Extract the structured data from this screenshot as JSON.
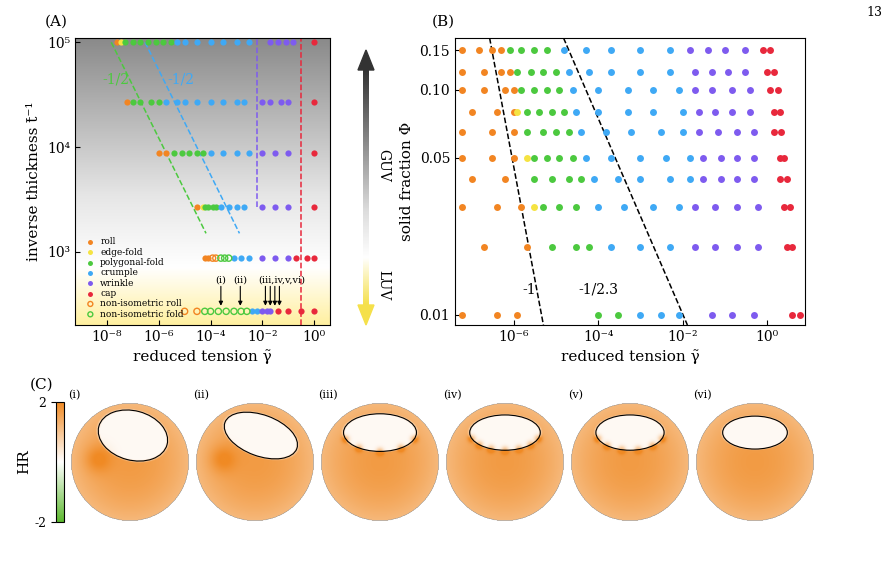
{
  "page": "13",
  "chart_data": [
    {
      "type": "scatter",
      "panel": "(A)",
      "xlabel": "reduced tension γ̃",
      "ylabel": "inverse thickness t̄⁻¹",
      "log": true,
      "xlim": [
        6e-10,
        4
      ],
      "ylim": [
        200,
        110000
      ],
      "xticks": [
        {
          "value": 1e-08,
          "label": "10⁻⁸"
        },
        {
          "value": 1e-06,
          "label": "10⁻⁶"
        },
        {
          "value": 0.0001,
          "label": "10⁻⁴"
        },
        {
          "value": 0.01,
          "label": "10⁻²"
        },
        {
          "value": 1,
          "label": "10⁰"
        }
      ],
      "yticks": [
        {
          "value": 1000,
          "label": "10³"
        },
        {
          "value": 10000,
          "label": "10⁴"
        },
        {
          "value": 100000,
          "label": "10⁵"
        }
      ],
      "legend": "lower left",
      "series": [
        {
          "name": "roll",
          "color": "#f28522",
          "marker": "circle",
          "x": [
            2.5e-08,
            6e-08,
            1e-06,
            2e-06,
            3e-05,
            6e-05,
            8e-05
          ],
          "values": [
            100000,
            27000,
            8700,
            8700,
            2700,
            870,
            870
          ]
        },
        {
          "name": "edge-fold",
          "color": "#f5e342",
          "marker": "circle",
          "x": [
            3.5e-08,
            5e-05
          ],
          "values": [
            100000,
            2700
          ]
        },
        {
          "name": "polygonal-fold",
          "color": "#4cc93f",
          "marker": "circle",
          "x": [
            5e-08,
            1e-07,
            2e-07,
            4e-07,
            8e-07,
            1.5e-06,
            3e-06,
            1e-07,
            2e-07,
            5e-07,
            1e-06,
            4e-06,
            8e-06,
            1.5e-05,
            3e-05,
            5e-05,
            6e-05,
            8e-05,
            0.00012,
            0.00016
          ],
          "values": [
            100000,
            100000,
            100000,
            100000,
            100000,
            100000,
            100000,
            27000,
            27000,
            27000,
            27000,
            8700,
            8700,
            8700,
            8700,
            8700,
            2700,
            2700,
            2700,
            2700
          ]
        },
        {
          "name": "crumple",
          "color": "#3fa9f5",
          "marker": "circle",
          "x": [
            5e-06,
            1e-05,
            3e-05,
            0.0001,
            0.0003,
            0.001,
            0.003,
            2e-06,
            5e-06,
            1e-05,
            3e-05,
            0.0001,
            0.0003,
            0.001,
            0.002,
            0.0001,
            0.0003,
            0.001,
            0.003,
            0.00025,
            0.0005,
            0.001,
            0.002,
            0.0008,
            0.0015,
            0.003,
            0.004,
            0.006
          ],
          "values": [
            100000,
            100000,
            100000,
            100000,
            100000,
            100000,
            100000,
            27000,
            27000,
            27000,
            27000,
            27000,
            27000,
            27000,
            27000,
            8700,
            8700,
            8700,
            8700,
            2700,
            2700,
            2700,
            2700,
            870,
            870,
            870,
            270,
            270
          ]
        },
        {
          "name": "wrinkle",
          "color": "#7e5bef",
          "marker": "circle",
          "x": [
            0.02,
            0.04,
            0.08,
            0.15,
            0.01,
            0.02,
            0.05,
            0.1,
            0.01,
            0.03,
            0.1,
            0.01,
            0.03,
            0.1,
            0.01,
            0.03,
            0.1,
            0.01,
            0.015,
            0.02
          ],
          "values": [
            100000,
            100000,
            100000,
            100000,
            27000,
            27000,
            27000,
            27000,
            8700,
            8700,
            8700,
            2700,
            2700,
            2700,
            870,
            870,
            870,
            270,
            270,
            270
          ]
        },
        {
          "name": "cap",
          "color": "#e8283c",
          "marker": "circle",
          "x": [
            1,
            1,
            1,
            1,
            0.2,
            0.5,
            1,
            0.04,
            0.1,
            0.3,
            1
          ],
          "values": [
            100000,
            27000,
            8700,
            2700,
            870,
            870,
            870,
            270,
            270,
            270,
            270
          ]
        },
        {
          "name": "non-isometric roll",
          "color": "#f28522",
          "marker": "open circle",
          "x": [
            0.00012,
            0.00016,
            1e-05,
            3e-05
          ],
          "values": [
            870,
            870,
            270,
            270
          ]
        },
        {
          "name": "non-isometric fold",
          "color": "#4cc93f",
          "marker": "open circle",
          "x": [
            0.00025,
            0.00035,
            0.0005,
            6e-05,
            0.0001,
            0.0002,
            0.0004,
            0.0008,
            0.0015,
            0.0025
          ],
          "values": [
            870,
            870,
            870,
            270,
            270,
            270,
            270,
            270,
            270,
            270
          ]
        }
      ],
      "lines": [
        {
          "color": "#4cc93f",
          "line_style": "dashed",
          "x": [
            1.5e-08,
            6.7e-05
          ],
          "values": [
            100000,
            1500
          ]
        },
        {
          "color": "#3fa9f5",
          "line_style": "dashed",
          "x": [
            3e-07,
            0.0013
          ],
          "values": [
            100000,
            1500
          ]
        },
        {
          "color": "#7e5bef",
          "line_style": "dashed",
          "x": [
            0.006,
            0.006
          ],
          "values": [
            2700,
            110000
          ]
        },
        {
          "color": "#e8283c",
          "line_style": "dashed",
          "x": [
            0.3,
            0.3
          ],
          "values": [
            200,
            110000
          ]
        }
      ],
      "annotations": [
        {
          "text": "-1/2",
          "x": 2.2e-08,
          "y": 44000,
          "color": "#4cc93f"
        },
        {
          "text": "-1/2",
          "x": 7e-06,
          "y": 44000,
          "color": "#3fa9f5"
        }
      ],
      "arrows": [
        {
          "text": "(i)",
          "x": [
            0.00025
          ],
          "y": 270
        },
        {
          "text": "(ii)",
          "x": [
            0.0014
          ],
          "y": 270
        },
        {
          "text": "(iii,iv,v,vi)",
          "x": [
            0.013,
            0.02,
            0.03,
            0.045
          ],
          "y": 270
        }
      ],
      "side_labels": [
        "GUV",
        "LUV"
      ]
    },
    {
      "type": "scatter",
      "panel": "(B)",
      "xlabel": "reduced tension γ̃",
      "ylabel": "solid fraction Φ",
      "log": true,
      "xlim": [
        4e-08,
        8
      ],
      "ylim": [
        0.009,
        0.17
      ],
      "xticks": [
        {
          "value": 1e-06,
          "label": "10⁻⁶"
        },
        {
          "value": 0.0001,
          "label": "10⁻⁴"
        },
        {
          "value": 0.01,
          "label": "10⁻²"
        },
        {
          "value": 1,
          "label": "10⁰"
        }
      ],
      "yticks": [
        0.01,
        0.05,
        {
          "value": 0.1,
          "label": "0.10"
        },
        0.15
      ],
      "series": [
        {
          "color": "#f28522",
          "marker": "circle",
          "x": [
            6e-08,
            1.5e-07,
            3e-07,
            5e-07,
            6e-08,
            2e-07,
            5e-07,
            8e-07,
            6e-08,
            2e-07,
            6e-07,
            1e-06,
            1e-07,
            4e-07,
            1e-06,
            6e-08,
            3e-07,
            1e-06,
            6e-08,
            3e-07,
            1e-06,
            1e-07,
            6e-07,
            6e-08,
            4e-07,
            1.5e-06,
            2e-07,
            2e-06,
            6e-08,
            4e-07,
            1.2e-06
          ],
          "values": [
            0.15,
            0.15,
            0.15,
            0.15,
            0.12,
            0.12,
            0.12,
            0.12,
            0.1,
            0.1,
            0.1,
            0.1,
            0.08,
            0.08,
            0.08,
            0.065,
            0.065,
            0.065,
            0.05,
            0.05,
            0.05,
            0.04,
            0.04,
            0.03,
            0.03,
            0.03,
            0.02,
            0.02,
            0.01,
            0.01,
            0.01
          ]
        },
        {
          "color": "#f5e342",
          "marker": "circle",
          "x": [
            1.2e-06,
            2e-06,
            3e-06
          ],
          "values": [
            0.08,
            0.05,
            0.03
          ]
        },
        {
          "color": "#4cc93f",
          "marker": "circle",
          "x": [
            8e-07,
            1.5e-06,
            3e-06,
            6e-06,
            1.2e-06,
            2.5e-06,
            5e-06,
            1e-05,
            1.5e-06,
            3e-06,
            6e-06,
            1.2e-05,
            2e-06,
            4e-06,
            8e-06,
            1.5e-05,
            2e-06,
            5e-06,
            1e-05,
            2e-05,
            3e-06,
            6e-06,
            1.2e-05,
            2.5e-05,
            3e-06,
            8e-06,
            2e-05,
            4e-05,
            5e-06,
            1.2e-05,
            3e-05,
            8e-06,
            3e-05,
            6e-05,
            0.0001,
            0.0003
          ],
          "values": [
            0.15,
            0.15,
            0.15,
            0.15,
            0.12,
            0.12,
            0.12,
            0.12,
            0.1,
            0.1,
            0.1,
            0.1,
            0.08,
            0.08,
            0.08,
            0.08,
            0.065,
            0.065,
            0.065,
            0.065,
            0.05,
            0.05,
            0.05,
            0.05,
            0.04,
            0.04,
            0.04,
            0.04,
            0.03,
            0.03,
            0.03,
            0.02,
            0.02,
            0.02,
            0.01,
            0.01
          ]
        },
        {
          "color": "#3fa9f5",
          "marker": "circle",
          "x": [
            1.5e-05,
            5e-05,
            0.0002,
            0.001,
            0.005,
            2e-05,
            6e-05,
            0.0002,
            0.001,
            0.005,
            2.5e-05,
            0.0001,
            0.0005,
            0.002,
            0.008,
            3e-05,
            0.0001,
            0.0005,
            0.002,
            0.01,
            4e-05,
            0.00015,
            0.0006,
            0.003,
            0.01,
            5e-05,
            0.0002,
            0.001,
            0.004,
            0.015,
            8e-05,
            0.0003,
            0.001,
            0.005,
            0.015,
            0.0001,
            0.0004,
            0.002,
            0.008,
            0.0002,
            0.001,
            0.005,
            0.001,
            0.003,
            0.008
          ],
          "values": [
            0.15,
            0.15,
            0.15,
            0.15,
            0.15,
            0.12,
            0.12,
            0.12,
            0.12,
            0.12,
            0.1,
            0.1,
            0.1,
            0.1,
            0.1,
            0.08,
            0.08,
            0.08,
            0.08,
            0.08,
            0.065,
            0.065,
            0.065,
            0.065,
            0.065,
            0.05,
            0.05,
            0.05,
            0.05,
            0.05,
            0.04,
            0.04,
            0.04,
            0.04,
            0.04,
            0.03,
            0.03,
            0.03,
            0.03,
            0.02,
            0.02,
            0.02,
            0.01,
            0.01,
            0.01
          ]
        },
        {
          "color": "#7e5bef",
          "marker": "circle",
          "x": [
            0.015,
            0.04,
            0.1,
            0.3,
            0.02,
            0.05,
            0.12,
            0.3,
            0.02,
            0.05,
            0.15,
            0.4,
            0.025,
            0.06,
            0.15,
            0.4,
            0.025,
            0.07,
            0.2,
            0.5,
            0.03,
            0.08,
            0.2,
            0.5,
            0.03,
            0.08,
            0.2,
            0.5,
            0.02,
            0.06,
            0.2,
            0.6,
            0.02,
            0.06,
            0.2,
            0.6,
            0.05,
            0.15,
            0.5
          ],
          "values": [
            0.15,
            0.15,
            0.15,
            0.15,
            0.12,
            0.12,
            0.12,
            0.12,
            0.1,
            0.1,
            0.1,
            0.1,
            0.08,
            0.08,
            0.08,
            0.08,
            0.065,
            0.065,
            0.065,
            0.065,
            0.05,
            0.05,
            0.05,
            0.05,
            0.04,
            0.04,
            0.04,
            0.04,
            0.03,
            0.03,
            0.03,
            0.03,
            0.02,
            0.02,
            0.02,
            0.02,
            0.01,
            0.01,
            0.01
          ]
        },
        {
          "color": "#e8283c",
          "marker": "circle",
          "x": [
            0.8,
            1.2,
            1,
            1.5,
            1.2,
            1.8,
            1.5,
            2,
            1.5,
            2.2,
            2,
            2.5,
            2,
            3,
            2.5,
            3.5,
            3,
            4,
            4,
            6
          ],
          "values": [
            0.15,
            0.15,
            0.12,
            0.12,
            0.1,
            0.1,
            0.08,
            0.08,
            0.065,
            0.065,
            0.05,
            0.05,
            0.04,
            0.04,
            0.03,
            0.03,
            0.02,
            0.02,
            0.01,
            0.01
          ]
        }
      ],
      "lines": [
        {
          "color": "#000000",
          "line_style": "dashed",
          "x": [
            2.65e-07,
            5e-06
          ],
          "values": [
            0.17,
            0.009
          ]
        },
        {
          "color": "#000000",
          "line_style": "dashed",
          "x": [
            1.5e-05,
            0.013
          ],
          "values": [
            0.17,
            0.009
          ]
        }
      ],
      "annotations": [
        {
          "text": "-1",
          "x": 2.3e-06,
          "y": 0.0129,
          "color": "#000000"
        },
        {
          "text": "-1/2.3",
          "x": 0.0001,
          "y": 0.0129,
          "color": "#000000"
        }
      ]
    },
    {
      "type": "image_grid",
      "panel": "(C)",
      "labels": [
        "(i)",
        "(ii)",
        "(iii)",
        "(iv)",
        "(v)",
        "(vi)"
      ],
      "colorbar": {
        "label": "HR",
        "range": [
          -2,
          2
        ],
        "ticks": [
          -2,
          2
        ]
      }
    }
  ]
}
